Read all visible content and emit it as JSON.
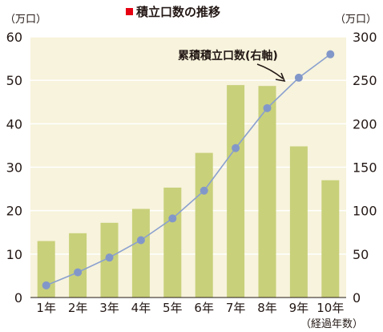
{
  "chart_data": {
    "type": "bar",
    "title": "積立口数の推移",
    "left_unit": "（万口）",
    "right_unit": "（万口）",
    "xlabel": "（経過年数）",
    "categories": [
      "1年",
      "2年",
      "3年",
      "4年",
      "5年",
      "6年",
      "7年",
      "8年",
      "9年",
      "10年"
    ],
    "left_axis": {
      "ylim": [
        0,
        60
      ],
      "ticks": [
        "0",
        "10",
        "20",
        "30",
        "40",
        "50",
        "60"
      ]
    },
    "right_axis": {
      "ylim": [
        0,
        300
      ],
      "ticks": [
        "0",
        "50",
        "100",
        "150",
        "200",
        "250",
        "300"
      ]
    },
    "series": [
      {
        "type": "bar",
        "axis": "left",
        "values": [
          13,
          14.8,
          17.2,
          20.4,
          25.3,
          33.3,
          48.9,
          48.7,
          34.8,
          27
        ]
      },
      {
        "type": "line",
        "axis": "right",
        "values": [
          14,
          29,
          46,
          66,
          91,
          123,
          172,
          218,
          253,
          280
        ]
      }
    ],
    "annotation": "累積積立口数(右軸)",
    "grid": true,
    "colors": {
      "bar": "#c8d07a",
      "line": "#8aa0cf",
      "marker": "#8297c9",
      "plot_bg": "#f7f3dc",
      "grid": "#ffffff",
      "title_mark": "#e60012"
    }
  }
}
